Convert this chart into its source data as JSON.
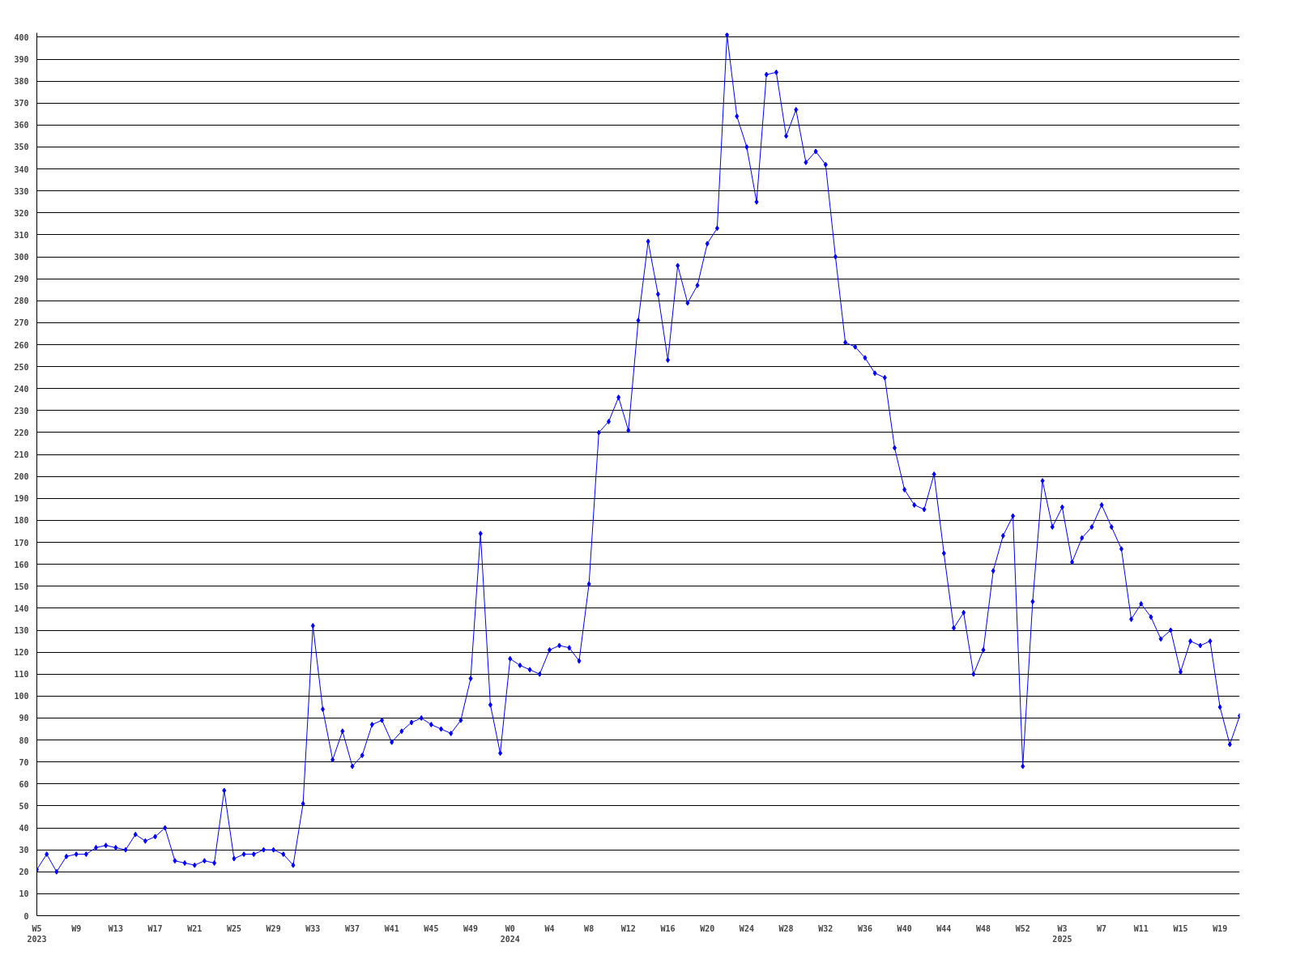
{
  "chart_data": {
    "type": "line",
    "categories": [
      "W5\n2023",
      null,
      null,
      null,
      "W9",
      null,
      null,
      null,
      "W13",
      null,
      null,
      null,
      "W17",
      null,
      null,
      null,
      "W21",
      null,
      null,
      null,
      "W25",
      null,
      null,
      null,
      "W29",
      null,
      null,
      null,
      "W33",
      null,
      null,
      null,
      "W37",
      null,
      null,
      null,
      "W41",
      null,
      null,
      null,
      "W45",
      null,
      null,
      null,
      "W49",
      null,
      null,
      null,
      "W0\n2024",
      null,
      null,
      null,
      "W4",
      null,
      null,
      null,
      "W8",
      null,
      null,
      null,
      "W12",
      null,
      null,
      null,
      "W16",
      null,
      null,
      null,
      "W20",
      null,
      null,
      null,
      "W24",
      null,
      null,
      null,
      "W28",
      null,
      null,
      null,
      "W32",
      null,
      null,
      null,
      "W36",
      null,
      null,
      null,
      "W40",
      null,
      null,
      null,
      "W44",
      null,
      null,
      null,
      "W48",
      null,
      null,
      null,
      "W52",
      null,
      null,
      null,
      "W3\n2025",
      null,
      null,
      null,
      "W7",
      null,
      null,
      null,
      "W11",
      null,
      null,
      null,
      "W15",
      null,
      null,
      null,
      "W19",
      null,
      null
    ],
    "series": [
      {
        "color": "#0000ff",
        "values": [
          21,
          28,
          20,
          27,
          28,
          28,
          31,
          32,
          31,
          30,
          37,
          34,
          36,
          40,
          25,
          24,
          23,
          25,
          24,
          57,
          26,
          28,
          28,
          30,
          30,
          28,
          23,
          51,
          132,
          94,
          71,
          84,
          68,
          73,
          87,
          89,
          79,
          84,
          88,
          90,
          87,
          85,
          83,
          89,
          108,
          174,
          96,
          74,
          117,
          114,
          112,
          110,
          121,
          123,
          122,
          116,
          151,
          220,
          225,
          236,
          221,
          271,
          307,
          283,
          253,
          296,
          279,
          287,
          306,
          313,
          401,
          364,
          350,
          325,
          383,
          384,
          355,
          367,
          343,
          348,
          342,
          300,
          261,
          259,
          254,
          247,
          245,
          213,
          194,
          187,
          185,
          201,
          165,
          131,
          138,
          110,
          121,
          157,
          173,
          182,
          68,
          143,
          198,
          177,
          186,
          161,
          172,
          177,
          187,
          177,
          167,
          135,
          142,
          136,
          126,
          130,
          111,
          125,
          123,
          125,
          95,
          78,
          91
        ]
      }
    ],
    "ylim": [
      0,
      402
    ],
    "yticks": [
      0,
      10,
      20,
      30,
      40,
      50,
      60,
      70,
      80,
      90,
      100,
      110,
      120,
      130,
      140,
      150,
      160,
      170,
      180,
      190,
      200,
      210,
      220,
      230,
      240,
      250,
      260,
      270,
      280,
      290,
      300,
      310,
      320,
      330,
      340,
      350,
      360,
      370,
      380,
      390,
      400
    ],
    "grid": "y",
    "marker": "diamond",
    "line_style": "solid"
  }
}
